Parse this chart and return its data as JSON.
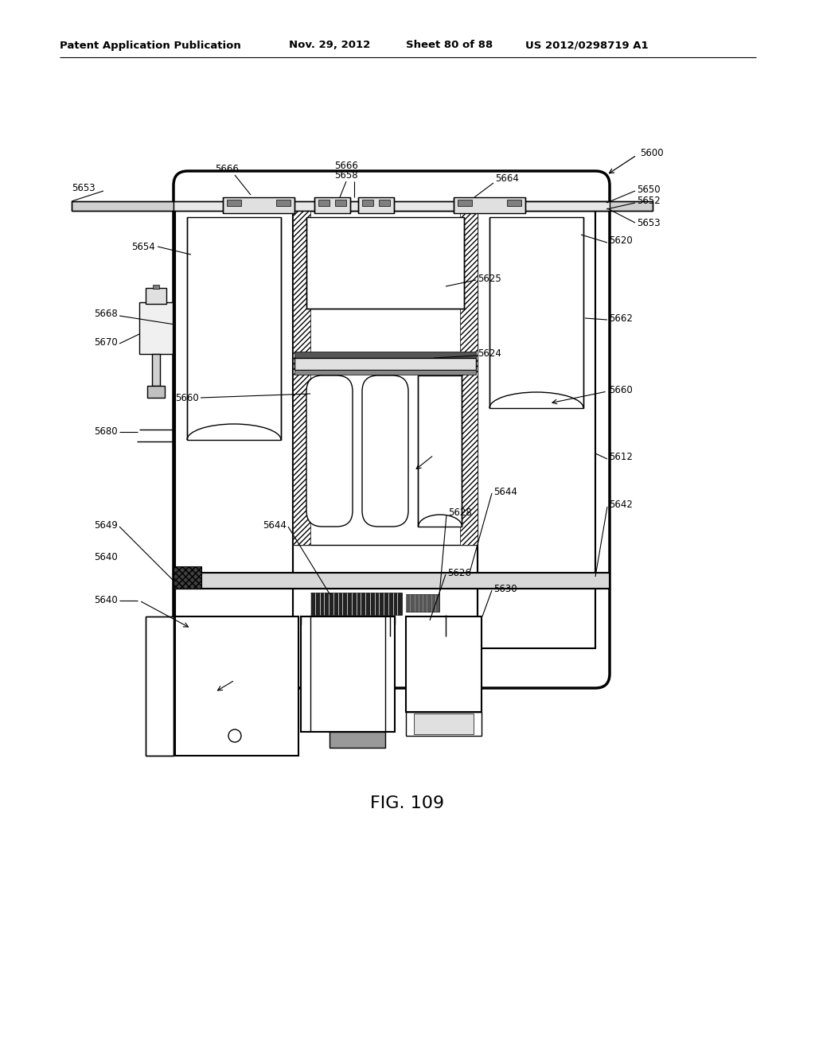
{
  "bg_color": "#ffffff",
  "line_color": "#000000",
  "header_text": "Patent Application Publication",
  "header_date": "Nov. 29, 2012",
  "header_sheet": "Sheet 80 of 88",
  "header_patent": "US 2012/0298719 A1",
  "fig_label": "FIG. 109"
}
